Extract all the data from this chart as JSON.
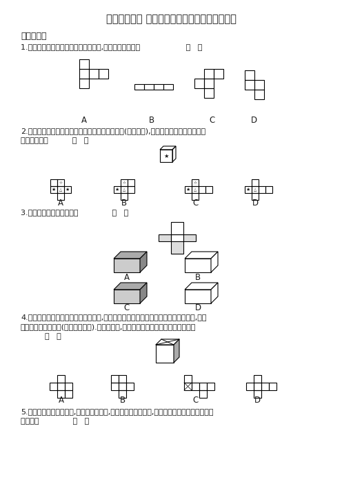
{
  "title": "【课题学习　 设计制作长方体形状的包装纸盒】",
  "section1": "一、选择题",
  "q1": "1.下列各图是小明面的长方体的展开图,你认为不正确的是                   （   ）",
  "q2_l1": "2.小丽要制作一个对面图案均相同的正方体礼品盒(如图所示),则这个正方体礼品盒的展开",
  "q2_l2": "图可能是中的          （   ）",
  "q3": "3.能折叠成的长方体是中的              （   ）",
  "q4_l1": "4.如图是一个正方体形状的商品包装盒,它的上底面被分成四个全等的等腰直角三角形,图中",
  "q4_l2": "有一个面被涂成红色(其余均为白色).下列图形中,可能是该包装盒展开图的示意图的是",
  "q4_l3": "          （   ）",
  "q5_l1": "5.中的四张正方形硬纸片,剪去阴影部分后,如图果沿虚线折叠后,可以围成一个封闭的长方体包",
  "q5_l2": "装盒的是              （   ）",
  "bg_color": "#ffffff",
  "text_color": "#1a1a1a",
  "gray": "#aaaaaa",
  "darkgray": "#888888"
}
